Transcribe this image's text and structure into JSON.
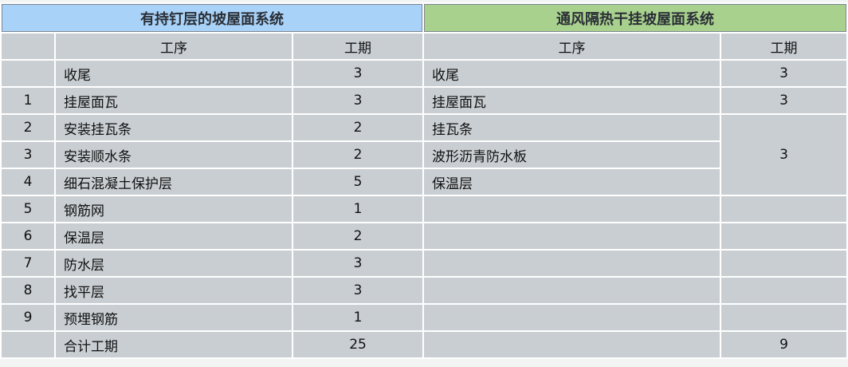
{
  "left": {
    "title": "有持钉层的坡屋面系统",
    "col_process": "工序",
    "col_duration": "工期",
    "rows": [
      {
        "no": "",
        "process": "收尾",
        "duration": "3"
      },
      {
        "no": "1",
        "process": "挂屋面瓦",
        "duration": "3"
      },
      {
        "no": "2",
        "process": "安装挂瓦条",
        "duration": "2"
      },
      {
        "no": "3",
        "process": "安装顺水条",
        "duration": "2"
      },
      {
        "no": "4",
        "process": "细石混凝土保护层",
        "duration": "5"
      },
      {
        "no": "5",
        "process": "钢筋网",
        "duration": "1"
      },
      {
        "no": "6",
        "process": "保温层",
        "duration": "2"
      },
      {
        "no": "7",
        "process": "防水层",
        "duration": "3"
      },
      {
        "no": "8",
        "process": "找平层",
        "duration": "3"
      },
      {
        "no": "9",
        "process": "预埋钢筋",
        "duration": "1"
      }
    ],
    "total_label": "合计工期",
    "total": "25"
  },
  "right": {
    "title": "通风隔热干挂坡屋面系统",
    "col_process": "工序",
    "col_duration": "工期",
    "rows": [
      {
        "process": "收尾",
        "duration": "3"
      },
      {
        "process": "挂屋面瓦",
        "duration": "3"
      },
      {
        "process": "挂瓦条",
        "duration": "3",
        "rowspan": 3
      },
      {
        "process": "波形沥青防水板"
      },
      {
        "process": "保温层"
      },
      {
        "process": "",
        "duration": ""
      },
      {
        "process": "",
        "duration": ""
      },
      {
        "process": "",
        "duration": ""
      },
      {
        "process": "",
        "duration": ""
      },
      {
        "process": "",
        "duration": ""
      }
    ],
    "total_label": "",
    "total": "9"
  },
  "colors": {
    "left_header": "#a9d2f8",
    "right_header": "#a9d18e",
    "cell": "#c9ced2"
  }
}
